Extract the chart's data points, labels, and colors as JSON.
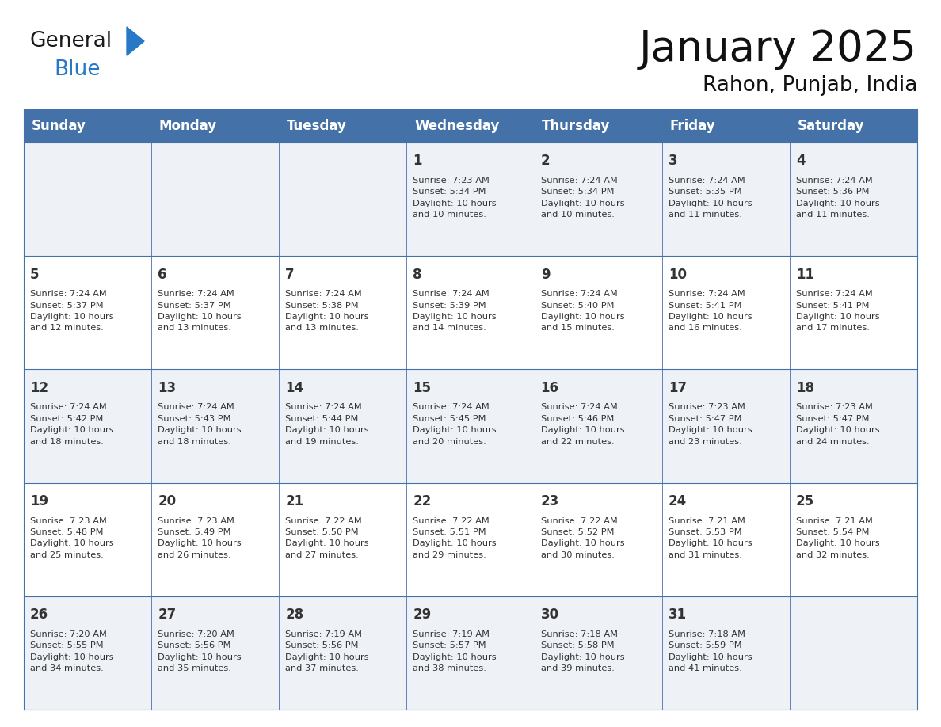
{
  "title": "January 2025",
  "subtitle": "Rahon, Punjab, India",
  "header_color": "#4472a8",
  "header_text_color": "#ffffff",
  "cell_bg_odd": "#eef2f7",
  "cell_bg_even": "#ffffff",
  "text_color": "#333333",
  "border_color": "#4472a8",
  "days_of_week": [
    "Sunday",
    "Monday",
    "Tuesday",
    "Wednesday",
    "Thursday",
    "Friday",
    "Saturday"
  ],
  "calendar_data": [
    [
      {
        "day": "",
        "info": ""
      },
      {
        "day": "",
        "info": ""
      },
      {
        "day": "",
        "info": ""
      },
      {
        "day": "1",
        "info": "Sunrise: 7:23 AM\nSunset: 5:34 PM\nDaylight: 10 hours\nand 10 minutes."
      },
      {
        "day": "2",
        "info": "Sunrise: 7:24 AM\nSunset: 5:34 PM\nDaylight: 10 hours\nand 10 minutes."
      },
      {
        "day": "3",
        "info": "Sunrise: 7:24 AM\nSunset: 5:35 PM\nDaylight: 10 hours\nand 11 minutes."
      },
      {
        "day": "4",
        "info": "Sunrise: 7:24 AM\nSunset: 5:36 PM\nDaylight: 10 hours\nand 11 minutes."
      }
    ],
    [
      {
        "day": "5",
        "info": "Sunrise: 7:24 AM\nSunset: 5:37 PM\nDaylight: 10 hours\nand 12 minutes."
      },
      {
        "day": "6",
        "info": "Sunrise: 7:24 AM\nSunset: 5:37 PM\nDaylight: 10 hours\nand 13 minutes."
      },
      {
        "day": "7",
        "info": "Sunrise: 7:24 AM\nSunset: 5:38 PM\nDaylight: 10 hours\nand 13 minutes."
      },
      {
        "day": "8",
        "info": "Sunrise: 7:24 AM\nSunset: 5:39 PM\nDaylight: 10 hours\nand 14 minutes."
      },
      {
        "day": "9",
        "info": "Sunrise: 7:24 AM\nSunset: 5:40 PM\nDaylight: 10 hours\nand 15 minutes."
      },
      {
        "day": "10",
        "info": "Sunrise: 7:24 AM\nSunset: 5:41 PM\nDaylight: 10 hours\nand 16 minutes."
      },
      {
        "day": "11",
        "info": "Sunrise: 7:24 AM\nSunset: 5:41 PM\nDaylight: 10 hours\nand 17 minutes."
      }
    ],
    [
      {
        "day": "12",
        "info": "Sunrise: 7:24 AM\nSunset: 5:42 PM\nDaylight: 10 hours\nand 18 minutes."
      },
      {
        "day": "13",
        "info": "Sunrise: 7:24 AM\nSunset: 5:43 PM\nDaylight: 10 hours\nand 18 minutes."
      },
      {
        "day": "14",
        "info": "Sunrise: 7:24 AM\nSunset: 5:44 PM\nDaylight: 10 hours\nand 19 minutes."
      },
      {
        "day": "15",
        "info": "Sunrise: 7:24 AM\nSunset: 5:45 PM\nDaylight: 10 hours\nand 20 minutes."
      },
      {
        "day": "16",
        "info": "Sunrise: 7:24 AM\nSunset: 5:46 PM\nDaylight: 10 hours\nand 22 minutes."
      },
      {
        "day": "17",
        "info": "Sunrise: 7:23 AM\nSunset: 5:47 PM\nDaylight: 10 hours\nand 23 minutes."
      },
      {
        "day": "18",
        "info": "Sunrise: 7:23 AM\nSunset: 5:47 PM\nDaylight: 10 hours\nand 24 minutes."
      }
    ],
    [
      {
        "day": "19",
        "info": "Sunrise: 7:23 AM\nSunset: 5:48 PM\nDaylight: 10 hours\nand 25 minutes."
      },
      {
        "day": "20",
        "info": "Sunrise: 7:23 AM\nSunset: 5:49 PM\nDaylight: 10 hours\nand 26 minutes."
      },
      {
        "day": "21",
        "info": "Sunrise: 7:22 AM\nSunset: 5:50 PM\nDaylight: 10 hours\nand 27 minutes."
      },
      {
        "day": "22",
        "info": "Sunrise: 7:22 AM\nSunset: 5:51 PM\nDaylight: 10 hours\nand 29 minutes."
      },
      {
        "day": "23",
        "info": "Sunrise: 7:22 AM\nSunset: 5:52 PM\nDaylight: 10 hours\nand 30 minutes."
      },
      {
        "day": "24",
        "info": "Sunrise: 7:21 AM\nSunset: 5:53 PM\nDaylight: 10 hours\nand 31 minutes."
      },
      {
        "day": "25",
        "info": "Sunrise: 7:21 AM\nSunset: 5:54 PM\nDaylight: 10 hours\nand 32 minutes."
      }
    ],
    [
      {
        "day": "26",
        "info": "Sunrise: 7:20 AM\nSunset: 5:55 PM\nDaylight: 10 hours\nand 34 minutes."
      },
      {
        "day": "27",
        "info": "Sunrise: 7:20 AM\nSunset: 5:56 PM\nDaylight: 10 hours\nand 35 minutes."
      },
      {
        "day": "28",
        "info": "Sunrise: 7:19 AM\nSunset: 5:56 PM\nDaylight: 10 hours\nand 37 minutes."
      },
      {
        "day": "29",
        "info": "Sunrise: 7:19 AM\nSunset: 5:57 PM\nDaylight: 10 hours\nand 38 minutes."
      },
      {
        "day": "30",
        "info": "Sunrise: 7:18 AM\nSunset: 5:58 PM\nDaylight: 10 hours\nand 39 minutes."
      },
      {
        "day": "31",
        "info": "Sunrise: 7:18 AM\nSunset: 5:59 PM\nDaylight: 10 hours\nand 41 minutes."
      },
      {
        "day": "",
        "info": ""
      }
    ]
  ],
  "logo_general_color": "#1a1a1a",
  "logo_blue_color": "#2878c8",
  "logo_triangle_color": "#2878c8",
  "figwidth": 11.88,
  "figheight": 9.18,
  "dpi": 100
}
